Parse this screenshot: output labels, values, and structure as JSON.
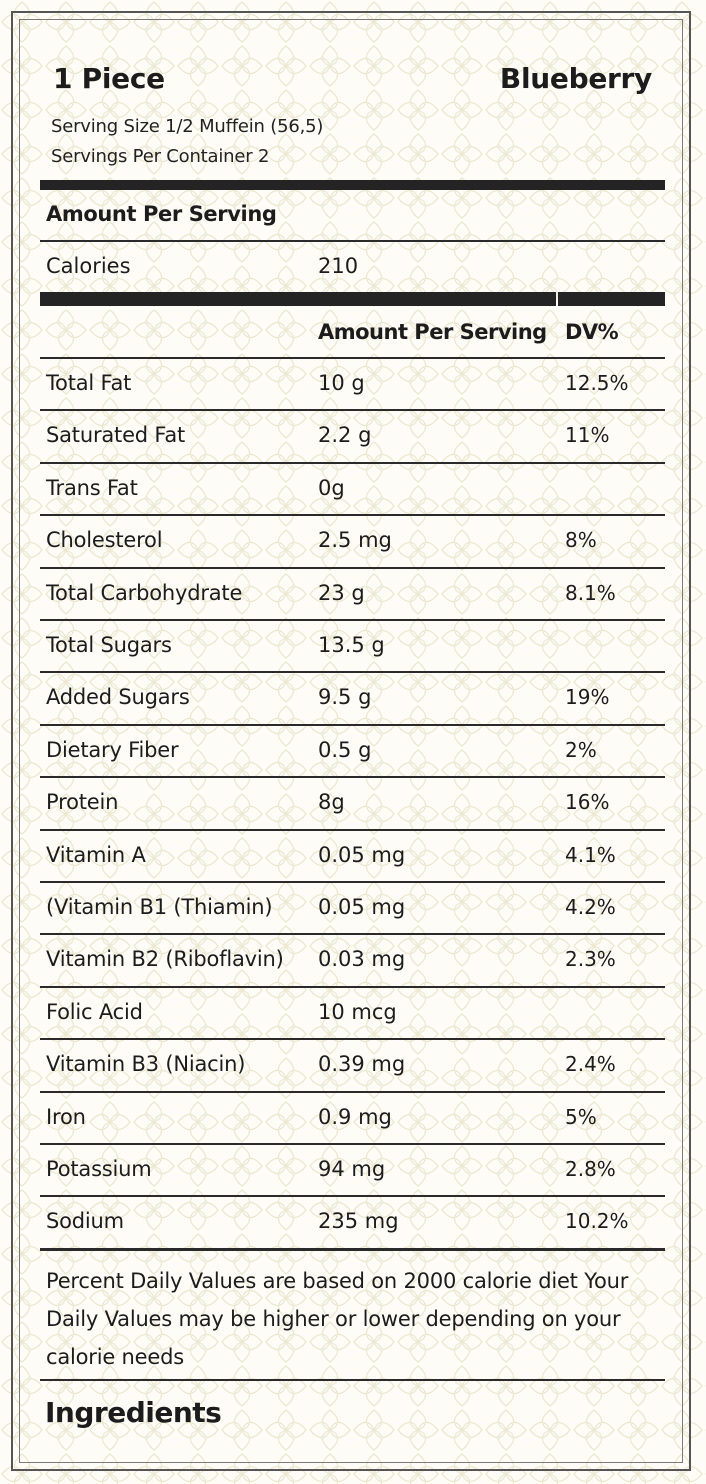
{
  "header": {
    "portion": "1 Piece",
    "flavor": "Blueberry",
    "serving_size": "Serving Size 1/2 Muffein (56,5)",
    "servings_per_container": "Servings Per Container 2"
  },
  "amount_per_serving_heading": "Amount Per Serving",
  "calories": {
    "label": "Calories",
    "value": "210"
  },
  "columns": {
    "amount": "Amount Per Serving",
    "dv": "DV%"
  },
  "nutrients": [
    {
      "name": "Total Fat",
      "amount": "10 g",
      "dv": "12.5%"
    },
    {
      "name": "Saturated Fat",
      "amount": "2.2 g",
      "dv": "11%"
    },
    {
      "name": "Trans Fat",
      "amount": "0g",
      "dv": ""
    },
    {
      "name": "Cholesterol",
      "amount": "2.5 mg",
      "dv": "8%"
    },
    {
      "name": "Total Carbohydrate",
      "amount": "23 g",
      "dv": "8.1%"
    },
    {
      "name": "Total Sugars",
      "amount": "13.5 g",
      "dv": ""
    },
    {
      "name": "Added Sugars",
      "amount": "9.5 g",
      "dv": "19%"
    },
    {
      "name": "Dietary Fiber",
      "amount": "0.5 g",
      "dv": "2%"
    },
    {
      "name": "Protein",
      "amount": "8g",
      "dv": "16%"
    },
    {
      "name": "Vitamin A",
      "amount": "0.05 mg",
      "dv": "4.1%"
    },
    {
      "name": "(Vitamin B1 (Thiamin)",
      "amount": "0.05 mg",
      "dv": "4.2%"
    },
    {
      "name": "Vitamin B2 (Riboflavin)",
      "amount": "0.03 mg",
      "dv": "2.3%"
    },
    {
      "name": "Folic Acid",
      "amount": "10 mcg",
      "dv": ""
    },
    {
      "name": "Vitamin B3 (Niacin)",
      "amount": "0.39 mg",
      "dv": "2.4%"
    },
    {
      "name": "Iron",
      "amount": "0.9 mg",
      "dv": "5%"
    },
    {
      "name": "Potassium",
      "amount": "94 mg",
      "dv": "2.8%"
    },
    {
      "name": "Sodium",
      "amount": "235 mg",
      "dv": "10.2%"
    }
  ],
  "footnote": "Percent Daily Values are based on 2000 calorie diet Your Daily Values may be higher or lower depending on your calorie needs",
  "ingredients_heading": "Ingredients"
}
